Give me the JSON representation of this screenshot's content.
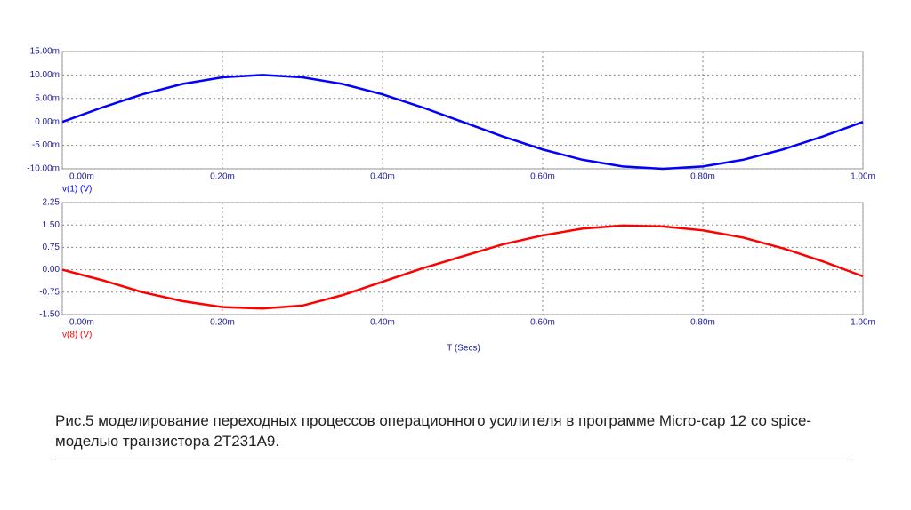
{
  "chart_data": [
    {
      "type": "line",
      "x": [
        0,
        0.05,
        0.1,
        0.15,
        0.2,
        0.25,
        0.3,
        0.35,
        0.4,
        0.45,
        0.5,
        0.55,
        0.6,
        0.65,
        0.7,
        0.75,
        0.8,
        0.85,
        0.9,
        0.95,
        1.0
      ],
      "series": [
        {
          "name": "v(1) (V)",
          "color": "#0000ff",
          "values": [
            0,
            3.09,
            5.88,
            8.09,
            9.51,
            10,
            9.51,
            8.09,
            5.88,
            3.09,
            0,
            -3.09,
            -5.88,
            -8.09,
            -9.51,
            -10,
            -9.51,
            -8.09,
            -5.88,
            -3.09,
            0
          ]
        }
      ],
      "xlim": [
        0,
        1
      ],
      "xticks": [
        {
          "value": 0,
          "label": "0.00m"
        },
        {
          "value": 0.2,
          "label": "0.20m"
        },
        {
          "value": 0.4,
          "label": "0.40m"
        },
        {
          "value": 0.6,
          "label": "0.60m"
        },
        {
          "value": 0.8,
          "label": "0.80m"
        },
        {
          "value": 1,
          "label": "1.00m"
        }
      ],
      "ylim": [
        -10,
        15
      ],
      "yticks": [
        {
          "value": 15,
          "label": "15.00m"
        },
        {
          "value": 10,
          "label": "10.00m"
        },
        {
          "value": 5,
          "label": "5.00m"
        },
        {
          "value": 0,
          "label": "0.00m"
        },
        {
          "value": -5,
          "label": "-5.00m"
        },
        {
          "value": -10,
          "label": "-10.00m"
        }
      ],
      "grid": true
    },
    {
      "type": "line",
      "x": [
        0,
        0.05,
        0.1,
        0.15,
        0.2,
        0.25,
        0.3,
        0.35,
        0.4,
        0.45,
        0.5,
        0.55,
        0.6,
        0.65,
        0.7,
        0.75,
        0.8,
        0.85,
        0.9,
        0.95,
        1.0
      ],
      "series": [
        {
          "name": "v(8) (V)",
          "color": "#ff0000",
          "values": [
            0,
            -0.35,
            -0.75,
            -1.05,
            -1.25,
            -1.3,
            -1.2,
            -0.85,
            -0.4,
            0.05,
            0.45,
            0.85,
            1.15,
            1.38,
            1.48,
            1.45,
            1.32,
            1.08,
            0.72,
            0.28,
            -0.22
          ]
        }
      ],
      "xlim": [
        0,
        1
      ],
      "xticks": [
        {
          "value": 0,
          "label": "0.00m"
        },
        {
          "value": 0.2,
          "label": "0.20m"
        },
        {
          "value": 0.4,
          "label": "0.40m"
        },
        {
          "value": 0.6,
          "label": "0.60m"
        },
        {
          "value": 0.8,
          "label": "0.80m"
        },
        {
          "value": 1,
          "label": "1.00m"
        }
      ],
      "ylim": [
        -1.5,
        2.25
      ],
      "yticks": [
        {
          "value": 2.25,
          "label": "2.25"
        },
        {
          "value": 1.5,
          "label": "1.50"
        },
        {
          "value": 0.75,
          "label": "0.75"
        },
        {
          "value": 0,
          "label": "0.00"
        },
        {
          "value": -0.75,
          "label": "-0.75"
        },
        {
          "value": -1.5,
          "label": "-1.50"
        }
      ],
      "xlabel": "T (Secs)",
      "grid": true
    }
  ],
  "caption": "Рис.5 моделирование переходных процессов операционного усилителя в программе Micro-cap 12 со spice-моделью транзистора 2T231A9."
}
